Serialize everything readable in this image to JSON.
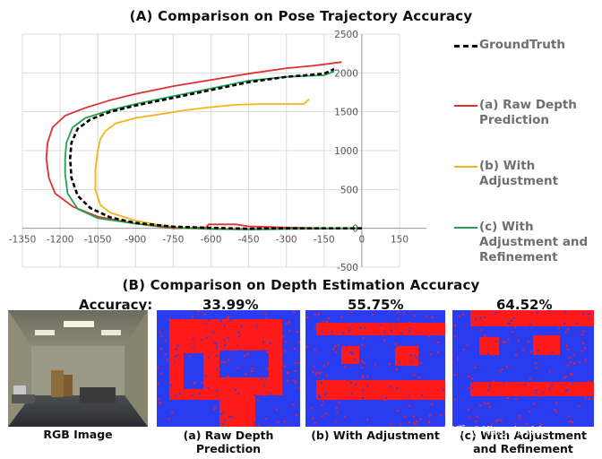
{
  "chart_title": "(A) Comparison on Pose Trajectory Accuracy",
  "section_b_title": "(B) Comparison on Depth Estimation Accuracy",
  "accuracy_label": "Accuracy:",
  "chart_data": {
    "type": "line",
    "title": "(A) Comparison on Pose Trajectory Accuracy",
    "xlabel": "",
    "ylabel": "",
    "xlim": [
      -1350,
      150
    ],
    "ylim": [
      -500,
      2500
    ],
    "x_ticks": [
      -1350,
      -1200,
      -1050,
      -900,
      -750,
      -600,
      -450,
      -300,
      -150,
      0,
      150
    ],
    "y_ticks": [
      -500,
      0,
      500,
      1000,
      1500,
      2000,
      2500
    ],
    "grid": true,
    "legend_position": "right",
    "series": [
      {
        "name": "GroundTruth",
        "color": "#000000",
        "dashed": true,
        "points": [
          [
            0,
            0
          ],
          [
            -150,
            0
          ],
          [
            -300,
            0
          ],
          [
            -450,
            -5
          ],
          [
            -600,
            5
          ],
          [
            -750,
            20
          ],
          [
            -900,
            70
          ],
          [
            -1000,
            140
          ],
          [
            -1080,
            260
          ],
          [
            -1130,
            420
          ],
          [
            -1155,
            650
          ],
          [
            -1160,
            900
          ],
          [
            -1155,
            1100
          ],
          [
            -1130,
            1280
          ],
          [
            -1080,
            1400
          ],
          [
            -1000,
            1500
          ],
          [
            -900,
            1580
          ],
          [
            -750,
            1680
          ],
          [
            -600,
            1780
          ],
          [
            -450,
            1880
          ],
          [
            -300,
            1950
          ],
          [
            -150,
            1990
          ],
          [
            -110,
            2050
          ]
        ]
      },
      {
        "name": "(a) Raw Depth Prediction",
        "color": "#e03030",
        "dashed": false,
        "points": [
          [
            0,
            0
          ],
          [
            -150,
            0
          ],
          [
            -300,
            10
          ],
          [
            -450,
            25
          ],
          [
            -500,
            50
          ],
          [
            -610,
            50
          ],
          [
            -620,
            10
          ],
          [
            -750,
            0
          ],
          [
            -900,
            60
          ],
          [
            -1050,
            150
          ],
          [
            -1150,
            280
          ],
          [
            -1220,
            450
          ],
          [
            -1245,
            650
          ],
          [
            -1255,
            900
          ],
          [
            -1250,
            1100
          ],
          [
            -1230,
            1300
          ],
          [
            -1180,
            1450
          ],
          [
            -1100,
            1550
          ],
          [
            -1000,
            1650
          ],
          [
            -900,
            1730
          ],
          [
            -750,
            1830
          ],
          [
            -600,
            1910
          ],
          [
            -450,
            1990
          ],
          [
            -300,
            2060
          ],
          [
            -200,
            2090
          ],
          [
            -150,
            2110
          ],
          [
            -80,
            2140
          ]
        ]
      },
      {
        "name": "(b) With Adjustment",
        "color": "#f2b61c",
        "dashed": false,
        "points": [
          [
            -490,
            0
          ],
          [
            -600,
            -10
          ],
          [
            -700,
            0
          ],
          [
            -800,
            40
          ],
          [
            -900,
            100
          ],
          [
            -1000,
            200
          ],
          [
            -1040,
            300
          ],
          [
            -1060,
            500
          ],
          [
            -1060,
            750
          ],
          [
            -1050,
            1000
          ],
          [
            -1040,
            1150
          ],
          [
            -1020,
            1250
          ],
          [
            -980,
            1350
          ],
          [
            -900,
            1420
          ],
          [
            -800,
            1470
          ],
          [
            -700,
            1520
          ],
          [
            -600,
            1560
          ],
          [
            -500,
            1590
          ],
          [
            -400,
            1600
          ],
          [
            -300,
            1600
          ],
          [
            -230,
            1600
          ],
          [
            -210,
            1660
          ]
        ]
      },
      {
        "name": "(c) With Adjustment and Refinement",
        "color": "#22a050",
        "dashed": false,
        "points": [
          [
            0,
            0
          ],
          [
            -150,
            -5
          ],
          [
            -300,
            -10
          ],
          [
            -450,
            -15
          ],
          [
            -600,
            -10
          ],
          [
            -750,
            10
          ],
          [
            -900,
            60
          ],
          [
            -1050,
            130
          ],
          [
            -1130,
            250
          ],
          [
            -1170,
            450
          ],
          [
            -1180,
            700
          ],
          [
            -1180,
            900
          ],
          [
            -1175,
            1100
          ],
          [
            -1150,
            1300
          ],
          [
            -1100,
            1420
          ],
          [
            -1000,
            1520
          ],
          [
            -900,
            1600
          ],
          [
            -750,
            1700
          ],
          [
            -600,
            1800
          ],
          [
            -450,
            1900
          ],
          [
            -300,
            1950
          ],
          [
            -150,
            1970
          ],
          [
            -110,
            2020
          ]
        ]
      }
    ]
  },
  "legend": [
    {
      "label": "GroundTruth",
      "color": "#000000",
      "dashed": true
    },
    {
      "label": "(a) Raw Depth\nPrediction",
      "color": "#e03030",
      "dashed": false
    },
    {
      "label": "(b) With\nAdjustment",
      "color": "#f2b61c",
      "dashed": false
    },
    {
      "label": "(c) With\nAdjustment and\nRefinement",
      "color": "#22a050",
      "dashed": false
    }
  ],
  "panels": {
    "rgb_caption": "RGB Image",
    "items": [
      {
        "accuracy": "33.99%",
        "caption": "(a) Raw Depth Prediction"
      },
      {
        "accuracy": "55.75%",
        "caption": "(b) With Adjustment"
      },
      {
        "accuracy": "64.52%",
        "caption": "(c) With Adjustment\nand Refinement"
      }
    ]
  },
  "colors": {
    "red_region": "#ff1a1a",
    "blue_region": "#2a3cf0"
  },
  "watermark": "知乎 @Kingsleyhk"
}
